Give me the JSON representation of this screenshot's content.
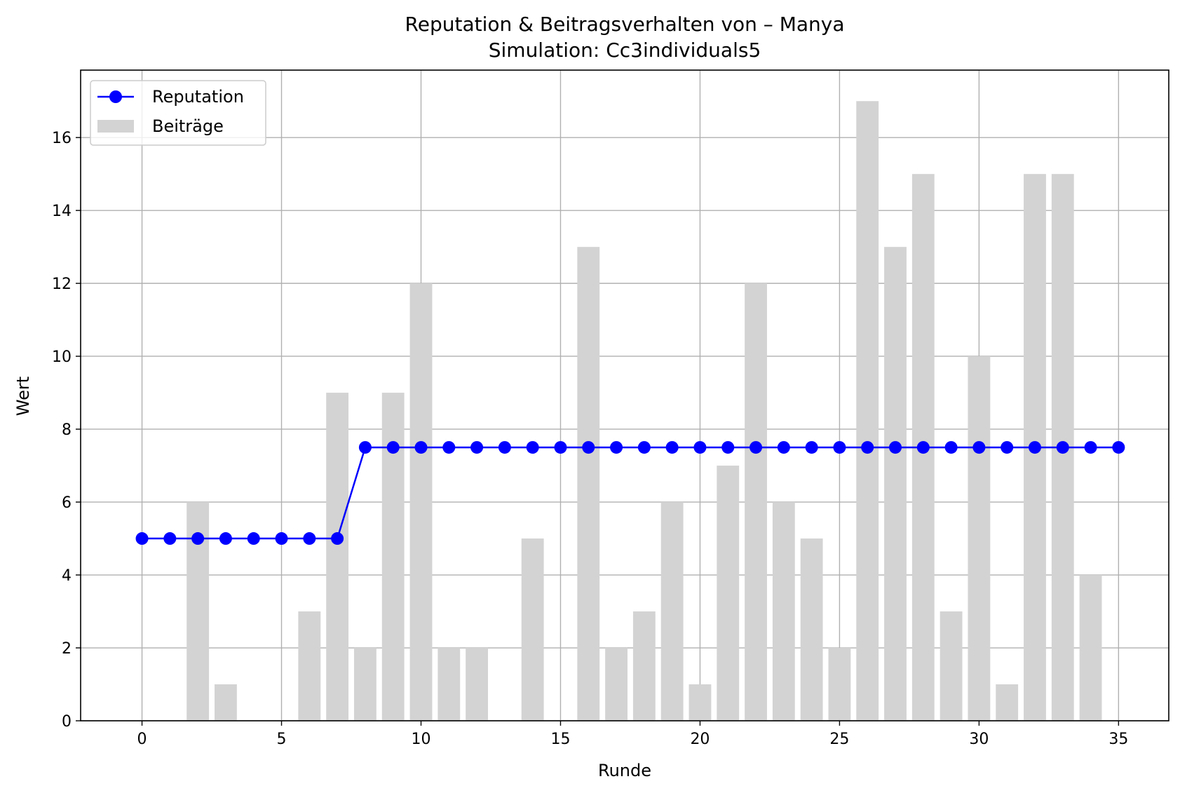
{
  "chart_data": {
    "type": "bar+line",
    "title": "Reputation & Beitragsverhalten von – Manya",
    "subtitle": "Simulation: Cc3individuals5",
    "xlabel": "Runde",
    "ylabel": "Wert",
    "xlim": [
      -2.2,
      36.8
    ],
    "ylim": [
      0,
      17.85
    ],
    "x_ticks": [
      0,
      5,
      10,
      15,
      20,
      25,
      30,
      35
    ],
    "y_ticks": [
      0,
      2,
      4,
      6,
      8,
      10,
      12,
      14,
      16
    ],
    "grid": true,
    "legend_position": "top-left",
    "x": [
      0,
      1,
      2,
      3,
      4,
      5,
      6,
      7,
      8,
      9,
      10,
      11,
      12,
      13,
      14,
      15,
      16,
      17,
      18,
      19,
      20,
      21,
      22,
      23,
      24,
      25,
      26,
      27,
      28,
      29,
      30,
      31,
      32,
      33,
      34,
      35
    ],
    "series": [
      {
        "name": "Reputation",
        "kind": "line",
        "color": "#0000ff",
        "marker": "circle",
        "values": [
          5,
          5,
          5,
          5,
          5,
          5,
          5,
          5,
          7.5,
          7.5,
          7.5,
          7.5,
          7.5,
          7.5,
          7.5,
          7.5,
          7.5,
          7.5,
          7.5,
          7.5,
          7.5,
          7.5,
          7.5,
          7.5,
          7.5,
          7.5,
          7.5,
          7.5,
          7.5,
          7.5,
          7.5,
          7.5,
          7.5,
          7.5,
          7.5,
          7.5
        ]
      },
      {
        "name": "Beiträge",
        "kind": "bar",
        "color": "#d3d3d3",
        "values": [
          0,
          0,
          6,
          1,
          0,
          0,
          3,
          9,
          2,
          9,
          12,
          2,
          2,
          0,
          5,
          0,
          13,
          2,
          3,
          6,
          1,
          7,
          12,
          6,
          5,
          2,
          17,
          13,
          15,
          3,
          10,
          1,
          15,
          15,
          4,
          0
        ]
      }
    ]
  }
}
